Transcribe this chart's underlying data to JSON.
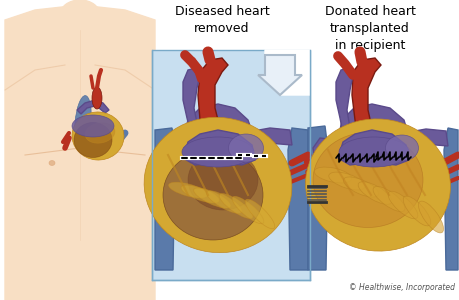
{
  "bg_color": "#ffffff",
  "title1": "Diseased heart\nremoved",
  "title2": "Donated heart\ntransplanted\nin recipient",
  "copyright": "© Healthwise, Incorporated",
  "skin_color": "#f2c49a",
  "skin_light": "#f8dfc4",
  "skin_shadow": "#d9a070",
  "heart_red": "#b83020",
  "heart_dark_red": "#7a1a10",
  "heart_yellow": "#d4a832",
  "heart_gold": "#c08820",
  "heart_brown": "#7a4010",
  "heart_tan": "#c09050",
  "vessel_blue": "#5a7aaa",
  "vessel_blue2": "#4a6a9a",
  "vessel_purple": "#6a5a9a",
  "vessel_purple2": "#5a4a8a",
  "box_blue": "#c8dff0",
  "box_edge": "#7aaac8",
  "arrow_fill": "#e8f0f8",
  "arrow_edge": "#aabaca"
}
